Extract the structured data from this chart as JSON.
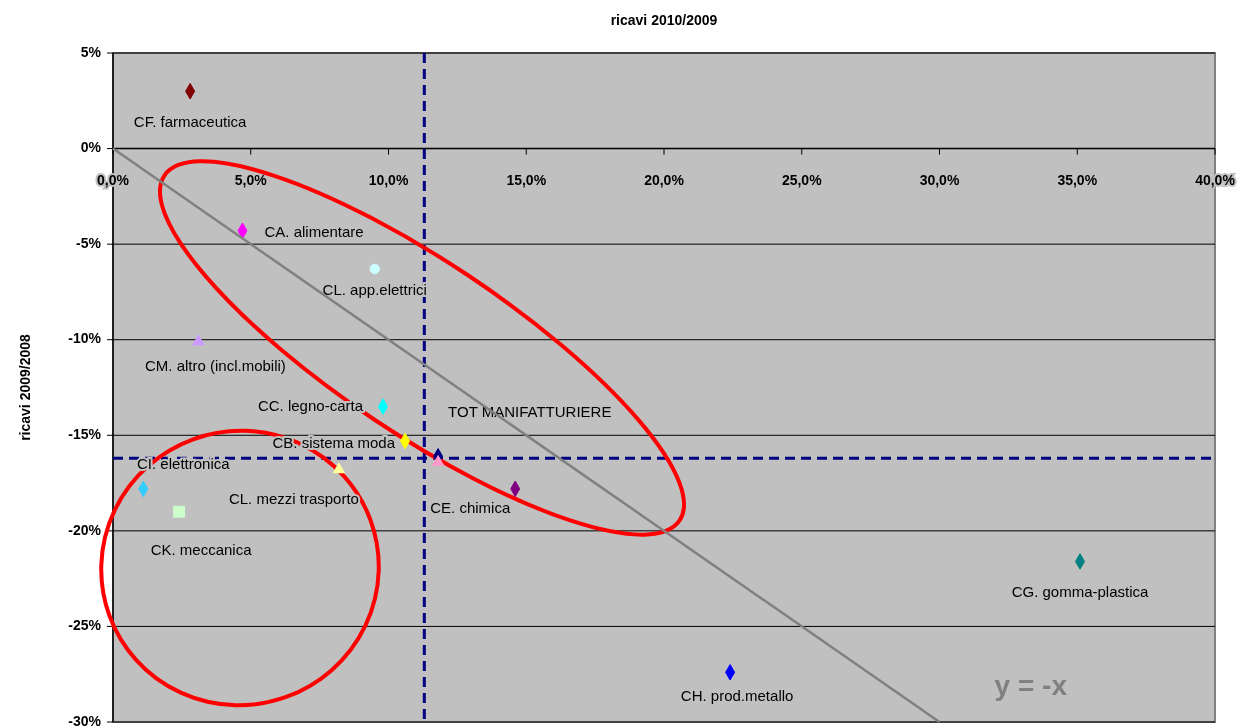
{
  "chart_data": {
    "type": "scatter",
    "title": "ricavi 2010/2009",
    "ylabel": "ricavi 2009/2008",
    "xlim": [
      0,
      40
    ],
    "ylim": [
      -30,
      5
    ],
    "xticks": [
      {
        "value": 0,
        "label": "0,0%"
      },
      {
        "value": 5,
        "label": "5,0%"
      },
      {
        "value": 10,
        "label": "10,0%"
      },
      {
        "value": 15,
        "label": "15,0%"
      },
      {
        "value": 20,
        "label": "20,0%"
      },
      {
        "value": 25,
        "label": "25,0%"
      },
      {
        "value": 30,
        "label": "30,0%"
      },
      {
        "value": 35,
        "label": "35,0%"
      },
      {
        "value": 40,
        "label": "40,0%"
      }
    ],
    "yticks": [
      {
        "value": 5,
        "label": "5%"
      },
      {
        "value": 0,
        "label": "0%"
      },
      {
        "value": -5,
        "label": "-5%"
      },
      {
        "value": -10,
        "label": "-10%"
      },
      {
        "value": -15,
        "label": "-15%"
      },
      {
        "value": -20,
        "label": "-20%"
      },
      {
        "value": -25,
        "label": "-25%"
      },
      {
        "value": -30,
        "label": "-30%"
      }
    ],
    "grid": "y",
    "series": [
      {
        "name": "CF. farmaceutica",
        "color": "#800000",
        "marker": "diamond",
        "x": [
          2.8
        ],
        "values": [
          3.0
        ]
      },
      {
        "name": "CA. alimentare",
        "color": "#ff00ff",
        "marker": "diamond",
        "x": [
          4.7
        ],
        "values": [
          -4.3
        ]
      },
      {
        "name": "CL. app.elettrici",
        "color": "#ccffff",
        "marker": "circle",
        "x": [
          9.5
        ],
        "values": [
          -6.3
        ]
      },
      {
        "name": "CM. altro (incl.mobili)",
        "color": "#cc99ff",
        "marker": "triangle",
        "x": [
          3.1
        ],
        "values": [
          -10.1
        ]
      },
      {
        "name": "CC. legno-carta",
        "color": "#00ffff",
        "marker": "diamond",
        "x": [
          9.8
        ],
        "values": [
          -13.5
        ]
      },
      {
        "name": "CB. sistema moda",
        "color": "#ffff00",
        "marker": "diamond",
        "x": [
          10.6
        ],
        "values": [
          -15.3
        ]
      },
      {
        "name": "TOT MANIFATTURIERE",
        "color": "#000080",
        "marker": "diamond",
        "x": [
          11.8
        ],
        "values": [
          -16.1
        ]
      },
      {
        "color": "#ff99cc",
        "marker": "triangle",
        "x": [
          11.8
        ],
        "values": [
          -16.4
        ]
      },
      {
        "name": "CL. mezzi trasporto",
        "color": "#ffff99",
        "marker": "triangle",
        "x": [
          8.2
        ],
        "values": [
          -16.8
        ]
      },
      {
        "name": "CI. elettronica",
        "color": "#33ccff",
        "marker": "diamond",
        "x": [
          1.1
        ],
        "values": [
          -17.8
        ]
      },
      {
        "name": "CK. meccanica",
        "color": "#ccffcc",
        "marker": "square",
        "x": [
          2.4
        ],
        "values": [
          -19.0
        ]
      },
      {
        "name": "CE. chimica",
        "color": "#800080",
        "marker": "diamond",
        "x": [
          14.6
        ],
        "values": [
          -17.8
        ]
      },
      {
        "name": "CG. gomma-plastica",
        "color": "#008080",
        "marker": "diamond",
        "x": [
          35.1
        ],
        "values": [
          -21.6
        ]
      },
      {
        "name": "CH. prod.metallo",
        "color": "#0000ff",
        "marker": "diamond",
        "x": [
          22.4
        ],
        "values": [
          -27.4
        ]
      },
      {
        "type": "line",
        "color": "#808080",
        "marker": "none",
        "x": [
          0,
          30
        ],
        "values": [
          0,
          -30
        ]
      }
    ],
    "ref_lines": [
      {
        "axis": "x",
        "value": 11.3,
        "color": "#000080",
        "line_style": "dashed"
      },
      {
        "axis": "y",
        "value": -16.2,
        "color": "#000080",
        "line_style": "dashed"
      }
    ],
    "annotations": [
      "y = -x"
    ]
  }
}
